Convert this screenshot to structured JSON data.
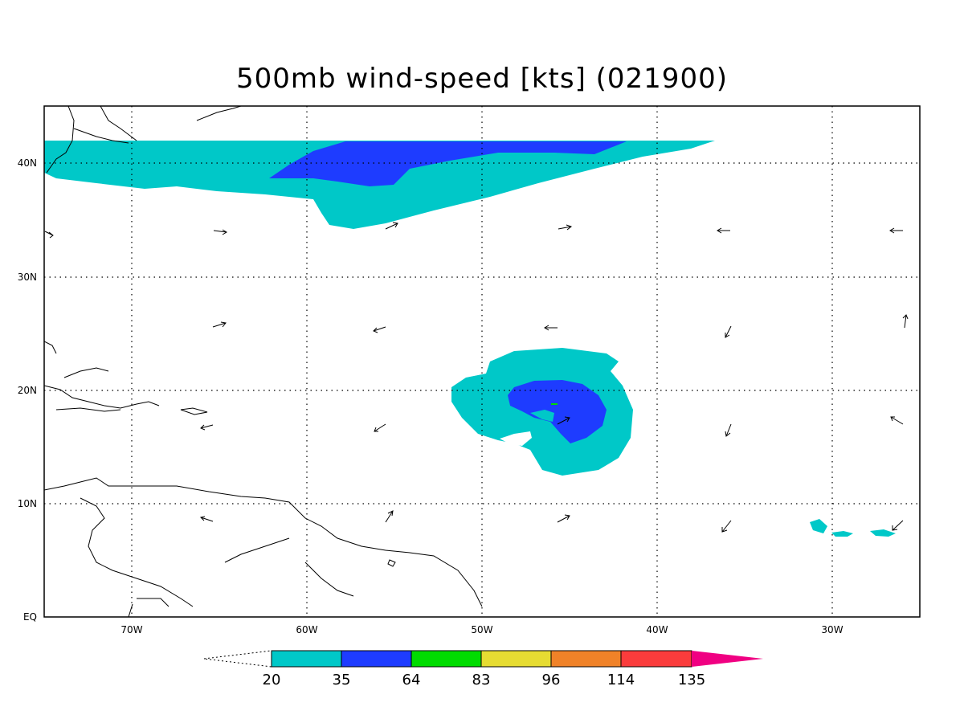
{
  "title": "500mb wind-speed [kts] (021900)",
  "axes": {
    "x_ticks": [
      {
        "lon": -70,
        "label": "70W"
      },
      {
        "lon": -60,
        "label": "60W"
      },
      {
        "lon": -50,
        "label": "50W"
      },
      {
        "lon": -40,
        "label": "40W"
      },
      {
        "lon": -30,
        "label": "30W"
      }
    ],
    "y_ticks": [
      {
        "lat": 0,
        "label": "EQ"
      },
      {
        "lat": 10,
        "label": "10N"
      },
      {
        "lat": 20,
        "label": "20N"
      },
      {
        "lat": 30,
        "label": "30N"
      },
      {
        "lat": 40,
        "label": "40N"
      }
    ],
    "lon_range": [
      -75,
      -25
    ],
    "lat_range": [
      0,
      45
    ],
    "grid": true
  },
  "colorbar": {
    "levels": [
      "20",
      "35",
      "64",
      "83",
      "96",
      "114",
      "135"
    ],
    "colors": [
      "#ffffff",
      "#00c8c8",
      "#1e3cff",
      "#00dc00",
      "#e6dc32",
      "#f08228",
      "#fa3c3c",
      "#f00082"
    ],
    "below_min": "open",
    "above_max": "triangle"
  },
  "legend_values": {
    "band_20_35": "20–35 kts",
    "band_35_64": "35–64 kts"
  }
}
